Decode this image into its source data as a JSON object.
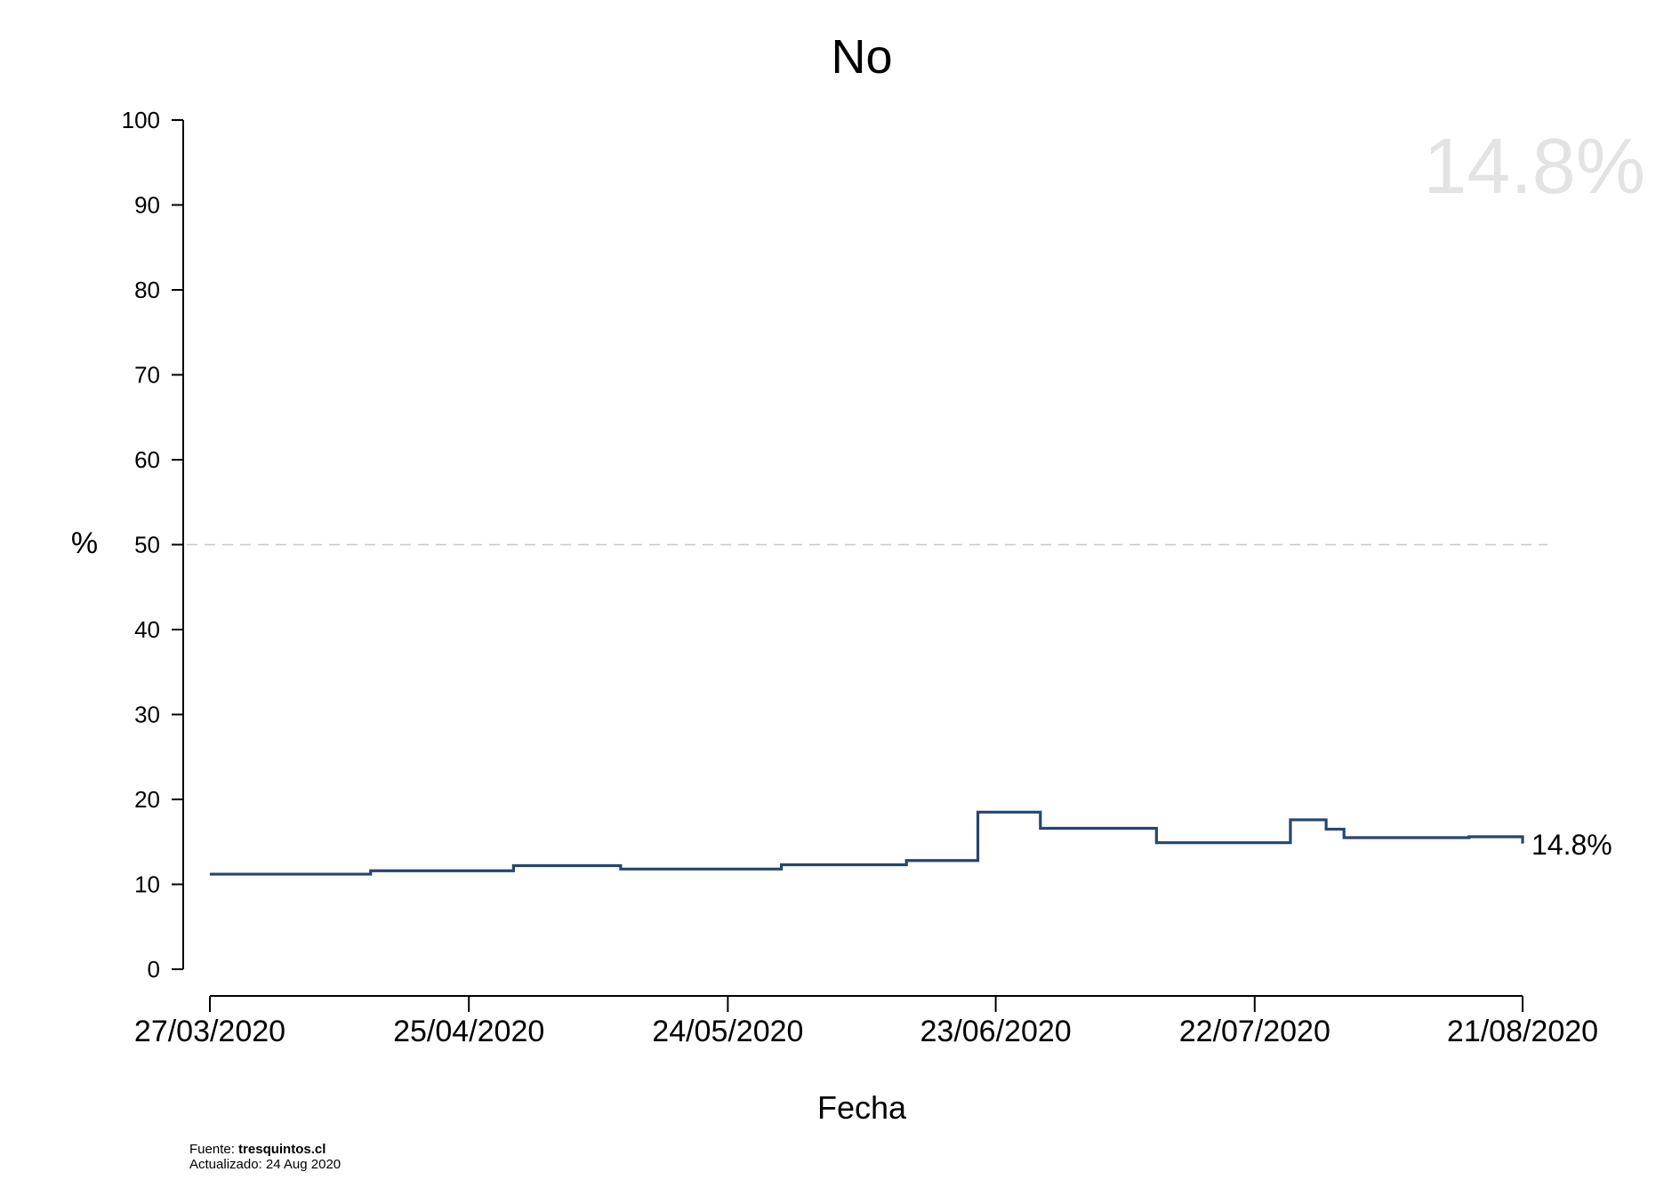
{
  "chart_data": {
    "type": "line",
    "title": "No",
    "xlabel": "Fecha",
    "ylabel": "%",
    "ylim": [
      0,
      100
    ],
    "yticks": [
      0,
      10,
      20,
      30,
      40,
      50,
      60,
      70,
      80,
      90,
      100
    ],
    "xlim": [
      "2020-03-27",
      "2020-08-21"
    ],
    "xticks": [
      {
        "date": "2020-03-27",
        "label": "27/03/2020"
      },
      {
        "date": "2020-04-25",
        "label": "25/04/2020"
      },
      {
        "date": "2020-05-24",
        "label": "24/05/2020"
      },
      {
        "date": "2020-06-23",
        "label": "23/06/2020"
      },
      {
        "date": "2020-07-22",
        "label": "22/07/2020"
      },
      {
        "date": "2020-08-21",
        "label": "21/08/2020"
      }
    ],
    "reference_line": 50,
    "series": [
      {
        "color": "#26466d",
        "step": true,
        "points": [
          {
            "x": "2020-03-27",
            "y": 11.2
          },
          {
            "x": "2020-04-14",
            "y": 11.6
          },
          {
            "x": "2020-04-30",
            "y": 12.2
          },
          {
            "x": "2020-05-12",
            "y": 11.8
          },
          {
            "x": "2020-05-30",
            "y": 12.3
          },
          {
            "x": "2020-06-13",
            "y": 12.8
          },
          {
            "x": "2020-06-21",
            "y": 18.5
          },
          {
            "x": "2020-06-28",
            "y": 16.6
          },
          {
            "x": "2020-07-11",
            "y": 14.9
          },
          {
            "x": "2020-07-26",
            "y": 17.6
          },
          {
            "x": "2020-07-30",
            "y": 16.5
          },
          {
            "x": "2020-08-01",
            "y": 15.5
          },
          {
            "x": "2020-08-15",
            "y": 15.6
          },
          {
            "x": "2020-08-21",
            "y": 14.8
          }
        ]
      }
    ],
    "last_value_label": "14.8%",
    "watermark": "14.8%"
  },
  "footer": {
    "source_prefix": "Fuente: ",
    "source": "tresquintos.cl",
    "updated": "Actualizado: 24 Aug 2020"
  },
  "colors": {
    "line": "#26466d",
    "watermark": "#e3e3e3",
    "reference": "#c8c8c8"
  }
}
